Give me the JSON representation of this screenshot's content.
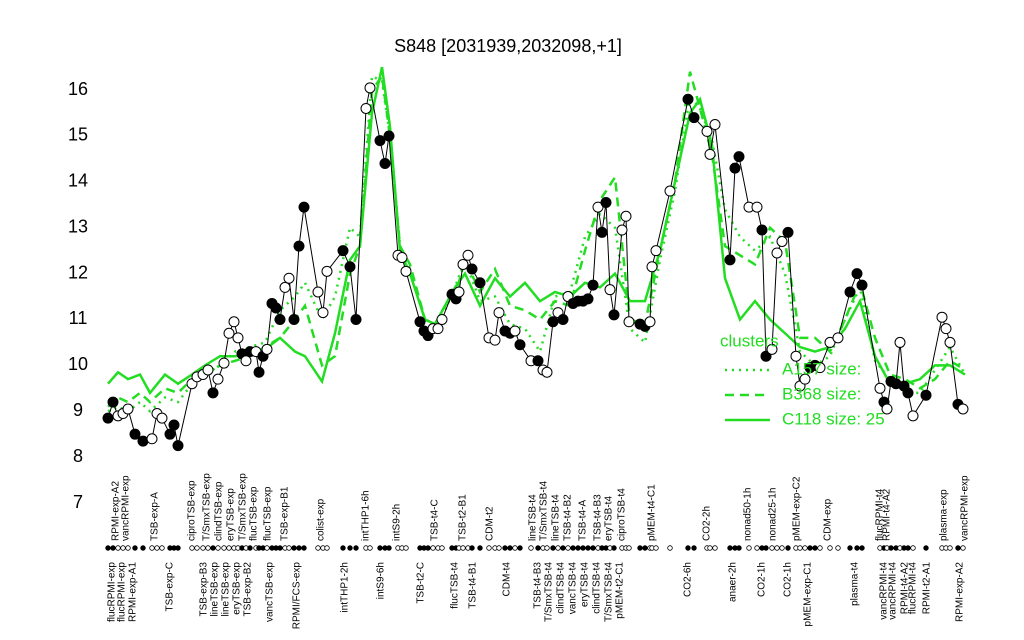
{
  "chart_data": {
    "type": "profile",
    "title": "S848 [2031939,2032098,+1]",
    "ylim": [
      7,
      16.7
    ],
    "yticks": [
      7,
      8,
      9,
      10,
      11,
      12,
      13,
      14,
      15,
      16
    ],
    "xlim": [
      100,
      970
    ],
    "point_color": "#000000",
    "x": [
      108,
      113,
      118,
      123,
      128,
      135,
      143,
      152,
      157,
      162,
      170,
      174,
      178,
      192,
      197,
      203,
      208,
      213,
      218,
      224,
      229,
      234,
      238,
      242,
      246,
      250,
      256,
      259,
      263,
      267,
      272,
      276,
      280,
      285,
      289,
      294,
      299,
      304,
      318,
      323,
      327,
      343,
      350,
      356,
      366,
      370,
      380,
      385,
      389,
      398,
      402,
      406,
      420,
      424,
      428,
      433,
      438,
      442,
      452,
      456,
      459,
      463,
      468,
      472,
      480,
      489,
      495,
      499,
      505,
      510,
      515,
      520,
      531,
      538,
      543,
      547,
      553,
      558,
      563,
      568,
      573,
      578,
      583,
      588,
      593,
      598,
      602,
      606,
      610,
      614,
      622,
      626,
      629,
      640,
      645,
      650,
      652,
      656,
      670,
      688,
      694,
      707,
      710,
      715,
      730,
      735,
      739,
      749,
      757,
      762,
      766,
      772,
      777,
      782,
      788,
      796,
      800,
      805,
      810,
      815,
      820,
      830,
      838,
      850,
      857,
      862,
      880,
      884,
      887,
      891,
      896,
      900,
      904,
      908,
      913,
      926,
      942,
      946,
      950,
      958,
      963
    ],
    "values": [
      8.85,
      9.2,
      8.9,
      8.95,
      9.05,
      8.5,
      8.35,
      8.4,
      8.95,
      8.85,
      8.5,
      8.7,
      8.25,
      9.6,
      9.75,
      9.8,
      9.9,
      9.4,
      9.7,
      10.05,
      10.7,
      10.95,
      10.6,
      10.25,
      10.1,
      10.3,
      10.3,
      9.85,
      10.2,
      10.35,
      11.35,
      11.25,
      11.0,
      11.7,
      11.9,
      11.0,
      12.6,
      13.45,
      11.6,
      11.15,
      12.05,
      12.5,
      12.15,
      11.0,
      15.6,
      16.05,
      14.9,
      14.4,
      15.0,
      12.4,
      12.35,
      12.05,
      10.95,
      10.75,
      10.65,
      10.8,
      10.8,
      11.0,
      11.55,
      11.45,
      11.6,
      12.2,
      12.4,
      12.1,
      11.8,
      10.6,
      10.55,
      11.15,
      10.75,
      10.7,
      10.75,
      10.45,
      10.1,
      10.1,
      9.9,
      9.85,
      10.95,
      11.15,
      11.0,
      11.5,
      11.35,
      11.4,
      11.4,
      11.45,
      11.75,
      13.45,
      12.9,
      13.55,
      11.65,
      11.1,
      12.95,
      13.25,
      10.95,
      10.9,
      10.85,
      10.95,
      12.15,
      12.5,
      13.8,
      15.8,
      15.4,
      15.1,
      14.6,
      15.25,
      12.3,
      14.3,
      14.55,
      13.45,
      13.45,
      12.95,
      10.2,
      10.35,
      12.45,
      12.7,
      12.9,
      10.2,
      9.55,
      9.7,
      9.95,
      10.0,
      9.95,
      10.5,
      10.6,
      11.6,
      12.0,
      11.75,
      9.5,
      9.2,
      9.05,
      9.65,
      9.6,
      10.5,
      9.55,
      9.4,
      8.9,
      9.35,
      11.05,
      10.8,
      10.5,
      9.15,
      9.05
    ],
    "filled": [
      true,
      true,
      false,
      false,
      false,
      true,
      true,
      false,
      false,
      false,
      true,
      true,
      true,
      false,
      false,
      false,
      false,
      true,
      false,
      false,
      false,
      false,
      false,
      true,
      false,
      true,
      false,
      true,
      true,
      false,
      true,
      true,
      true,
      false,
      false,
      true,
      true,
      true,
      false,
      false,
      false,
      true,
      true,
      true,
      false,
      false,
      true,
      true,
      true,
      false,
      false,
      false,
      true,
      true,
      true,
      false,
      false,
      false,
      true,
      true,
      false,
      false,
      false,
      true,
      true,
      false,
      false,
      false,
      true,
      true,
      false,
      true,
      false,
      true,
      false,
      false,
      true,
      false,
      true,
      false,
      true,
      true,
      true,
      true,
      true,
      false,
      true,
      true,
      false,
      true,
      false,
      false,
      false,
      true,
      true,
      false,
      false,
      false,
      false,
      true,
      true,
      false,
      false,
      false,
      true,
      true,
      true,
      false,
      false,
      true,
      true,
      false,
      false,
      false,
      true,
      false,
      false,
      false,
      true,
      true,
      false,
      false,
      false,
      true,
      true,
      true,
      false,
      true,
      false,
      true,
      true,
      false,
      true,
      true,
      false,
      true,
      false,
      false,
      false,
      true,
      false
    ],
    "xticks_top": [
      {
        "value": 116,
        "label": "RPMI-exp-A2"
      },
      {
        "value": 126,
        "label": "vancRPMI-exp"
      },
      {
        "value": 155,
        "label": "TSB-exp-A"
      },
      {
        "value": 192,
        "label": "ciproTSB-exp"
      },
      {
        "value": 207,
        "label": "T/SmxTSB-exp"
      },
      {
        "value": 219,
        "label": "clindTSB-exp"
      },
      {
        "value": 231,
        "label": "eryTSB-exp"
      },
      {
        "value": 243,
        "label": "T/SmxTSB-exp"
      },
      {
        "value": 254,
        "label": "flucTSB-exp"
      },
      {
        "value": 268,
        "label": "flucTSB-exp"
      },
      {
        "value": 285,
        "label": "TSB-exp-B1"
      },
      {
        "value": 321,
        "label": "colist-exp"
      },
      {
        "value": 366,
        "label": "intTHP1-6h"
      },
      {
        "value": 397,
        "label": "intS9-2h"
      },
      {
        "value": 435,
        "label": "TSB-t4-C"
      },
      {
        "value": 463,
        "label": "TSB-t2-B1"
      },
      {
        "value": 490,
        "label": "CDM-t2"
      },
      {
        "value": 533,
        "label": "lineTSB-t4"
      },
      {
        "value": 544,
        "label": "T/SmxTSB-t4"
      },
      {
        "value": 556,
        "label": "lineTSB-t4"
      },
      {
        "value": 568,
        "label": "TSB-t4-B2"
      },
      {
        "value": 583,
        "label": "TSB-t4-A"
      },
      {
        "value": 598,
        "label": "TSB-t4-B3"
      },
      {
        "value": 609,
        "label": "eryTSB-t4"
      },
      {
        "value": 622,
        "label": "ciproTSB-t4"
      },
      {
        "value": 652,
        "label": "pMEM-t4-C1"
      },
      {
        "value": 707,
        "label": "CO2-2h"
      },
      {
        "value": 748,
        "label": "nonad50-1h"
      },
      {
        "value": 773,
        "label": "nonad25-1h"
      },
      {
        "value": 797,
        "label": "pMEM-exp-C2"
      },
      {
        "value": 828,
        "label": "CDM-exp"
      },
      {
        "value": 880,
        "label": "flucRPMI-t4"
      },
      {
        "value": 887,
        "label": "RPMI-t4-A2"
      },
      {
        "value": 944,
        "label": "plasma-exp"
      },
      {
        "value": 965,
        "label": "vancRPMI-exp"
      }
    ],
    "xticks_bottom": [
      {
        "value": 112,
        "label": "flucRPMI-exp"
      },
      {
        "value": 122,
        "label": "flucRPMI-exp"
      },
      {
        "value": 133,
        "label": "RPMI-exp-A1"
      },
      {
        "value": 170,
        "label": "TSB-exp-C"
      },
      {
        "value": 204,
        "label": "TSB-exp-B3"
      },
      {
        "value": 215,
        "label": "lineTSB-exp"
      },
      {
        "value": 226,
        "label": "lineTSB-exp"
      },
      {
        "value": 237,
        "label": "eryTSB-exp"
      },
      {
        "value": 248,
        "label": "TSB-exp-B2"
      },
      {
        "value": 270,
        "label": "vancTSB-exp"
      },
      {
        "value": 297,
        "label": "RPMI/FCS-exp"
      },
      {
        "value": 345,
        "label": "intTHP1-2h"
      },
      {
        "value": 381,
        "label": "intS9-6h"
      },
      {
        "value": 421,
        "label": "TSB-t2-C"
      },
      {
        "value": 455,
        "label": "flucTSB-t4"
      },
      {
        "value": 473,
        "label": "TSB-t4-B1"
      },
      {
        "value": 507,
        "label": "CDM-t4"
      },
      {
        "value": 538,
        "label": "TSB-t4-B3"
      },
      {
        "value": 549,
        "label": "T/SmxTSB-t4"
      },
      {
        "value": 561,
        "label": "clindTSB-t4"
      },
      {
        "value": 573,
        "label": "vancTSB-t4"
      },
      {
        "value": 585,
        "label": "eryTSB-t4"
      },
      {
        "value": 597,
        "label": "clindTSB-t4"
      },
      {
        "value": 609,
        "label": "T/SmxTSB-t4"
      },
      {
        "value": 620,
        "label": "pMEM-t2-C1"
      },
      {
        "value": 688,
        "label": "CO2-6h"
      },
      {
        "value": 733,
        "label": "anaer-2h"
      },
      {
        "value": 762,
        "label": "CO2-1h"
      },
      {
        "value": 788,
        "label": "CO2-1h"
      },
      {
        "value": 808,
        "label": "pMEM-exp-C1"
      },
      {
        "value": 855,
        "label": "plasma-t4"
      },
      {
        "value": 884,
        "label": "vancRPMI-t4"
      },
      {
        "value": 893,
        "label": "vancRPMI-t4"
      },
      {
        "value": 905,
        "label": "RPMI-t4-A2"
      },
      {
        "value": 913,
        "label": "flucRPMI-t4"
      },
      {
        "value": 927,
        "label": "RPMI-t2-A1"
      },
      {
        "value": 960,
        "label": "RPMI-exp-A2"
      }
    ],
    "legend_title": "clusters",
    "series": [
      {
        "name": "A157 size:",
        "color": "#22dd22",
        "dash": "2 5",
        "x": [
          108,
          118,
          128,
          140,
          150,
          165,
          178,
          192,
          205,
          220,
          235,
          250,
          265,
          280,
          295,
          305,
          322,
          335,
          350,
          360,
          372,
          382,
          390,
          400,
          410,
          425,
          435,
          445,
          455,
          465,
          480,
          495,
          510,
          525,
          540,
          555,
          570,
          585,
          600,
          615,
          630,
          645,
          660,
          675,
          690,
          700,
          712,
          725,
          740,
          755,
          770,
          785,
          800,
          815,
          830,
          845,
          860,
          875,
          890,
          905,
          920,
          935,
          950,
          965
        ],
        "values": [
          9.0,
          9.1,
          9.0,
          9.2,
          9.0,
          9.3,
          9.2,
          9.6,
          9.8,
          10.0,
          10.3,
          10.4,
          10.5,
          11.2,
          11.5,
          11.8,
          11.0,
          11.5,
          13.0,
          12.8,
          16.3,
          16.2,
          15.0,
          12.6,
          12.1,
          11.0,
          10.8,
          11.2,
          11.7,
          12.3,
          11.4,
          11.5,
          10.9,
          10.8,
          10.3,
          11.5,
          11.6,
          12.8,
          13.3,
          13.0,
          10.8,
          10.5,
          12.3,
          13.8,
          15.9,
          15.6,
          14.9,
          13.4,
          12.8,
          12.5,
          12.8,
          12.0,
          10.3,
          10.0,
          10.2,
          11.0,
          11.7,
          10.1,
          9.7,
          9.4,
          9.4,
          9.9,
          10.4,
          9.8
        ]
      },
      {
        "name": "B368 size:",
        "color": "#22dd22",
        "dash": "9 6",
        "x": [
          108,
          118,
          128,
          140,
          150,
          165,
          178,
          192,
          205,
          220,
          235,
          250,
          265,
          280,
          295,
          305,
          322,
          335,
          350,
          360,
          372,
          382,
          390,
          400,
          410,
          425,
          435,
          445,
          455,
          465,
          480,
          495,
          510,
          525,
          540,
          555,
          570,
          585,
          600,
          615,
          630,
          645,
          660,
          675,
          690,
          700,
          712,
          725,
          740,
          755,
          770,
          785,
          800,
          815,
          830,
          845,
          860,
          875,
          890,
          905,
          920,
          935,
          950,
          965
        ],
        "values": [
          9.1,
          9.3,
          9.2,
          9.4,
          9.2,
          9.5,
          9.4,
          9.7,
          9.8,
          10.0,
          10.1,
          10.2,
          10.4,
          10.6,
          11.0,
          11.3,
          10.0,
          10.2,
          12.0,
          12.6,
          16.0,
          16.3,
          15.0,
          12.6,
          12.2,
          11.0,
          10.9,
          11.3,
          11.5,
          12.3,
          11.6,
          12.1,
          11.3,
          11.2,
          11.0,
          11.4,
          11.3,
          12.5,
          13.6,
          14.1,
          11.0,
          10.9,
          12.5,
          14.0,
          16.4,
          15.6,
          14.6,
          12.6,
          12.4,
          12.2,
          13.0,
          12.7,
          10.6,
          10.6,
          10.3,
          11.0,
          11.8,
          10.6,
          9.8,
          9.7,
          9.5,
          9.7,
          10.1,
          9.9
        ]
      },
      {
        "name": "C118 size: 25",
        "color": "#22dd22",
        "dash": "none",
        "x": [
          108,
          118,
          128,
          140,
          150,
          165,
          178,
          192,
          205,
          220,
          235,
          250,
          265,
          280,
          295,
          305,
          322,
          335,
          350,
          360,
          372,
          382,
          390,
          400,
          410,
          425,
          435,
          445,
          455,
          465,
          480,
          495,
          510,
          525,
          540,
          555,
          570,
          585,
          600,
          615,
          630,
          645,
          660,
          675,
          690,
          700,
          712,
          725,
          740,
          755,
          770,
          785,
          800,
          815,
          830,
          845,
          860,
          875,
          890,
          905,
          920,
          935,
          950,
          965
        ],
        "values": [
          9.6,
          9.85,
          9.7,
          9.8,
          9.4,
          9.8,
          9.6,
          9.8,
          10.0,
          10.2,
          10.2,
          10.25,
          10.35,
          10.6,
          10.3,
          10.2,
          9.65,
          10.7,
          12.3,
          12.6,
          15.5,
          16.5,
          15.2,
          12.5,
          12.0,
          11.0,
          10.9,
          11.3,
          11.7,
          12.0,
          11.3,
          11.9,
          11.5,
          11.8,
          11.4,
          11.6,
          11.5,
          11.8,
          11.7,
          12.0,
          11.4,
          11.4,
          12.5,
          14.0,
          15.5,
          15.8,
          14.8,
          11.9,
          11.0,
          11.4,
          11.0,
          10.7,
          10.4,
          10.3,
          10.4,
          10.8,
          11.4,
          10.2,
          9.6,
          9.6,
          9.7,
          10.0,
          10.0,
          9.8
        ]
      }
    ]
  }
}
